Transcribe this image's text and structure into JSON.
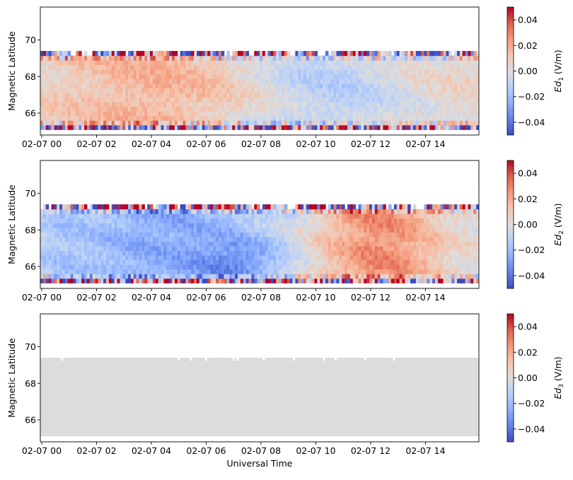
{
  "chart_data": [
    {
      "type": "heatmap",
      "ylabel": "Magnetic Latitude",
      "xlabel": "",
      "ylim": [
        64.8,
        71.8
      ],
      "data_lat_range": [
        65.1,
        69.4
      ],
      "x_ticks": [
        "02-07 00",
        "02-07 02",
        "02-07 04",
        "02-07 06",
        "02-07 08",
        "02-07 10",
        "02-07 12",
        "02-07 14"
      ],
      "x_tick_hours": [
        0,
        2,
        4,
        6,
        8,
        10,
        12,
        14
      ],
      "x_range_hours": [
        -0.05,
        15.95
      ],
      "y_ticks": [
        66,
        68,
        70
      ],
      "colorbar": {
        "label_base": "Ed",
        "label_sub": "1",
        "label_unit": " (V/m)",
        "range": [
          -0.05,
          0.05
        ],
        "ticks": [
          0.04,
          0.02,
          0.0,
          -0.02,
          -0.04
        ],
        "tick_labels": [
          "0.04",
          "0.02",
          "0.00",
          "−0.02",
          "−0.04"
        ],
        "colormap": "coolwarm"
      },
      "pattern": "mostly near zero; slightly positive (light red) 02-07 02 to 02-07 08, slightly negative (light blue) 02-07 08 to 02-07 13; noisy high-amplitude values at top and bottom latitude rows"
    },
    {
      "type": "heatmap",
      "ylabel": "Magnetic Latitude",
      "xlabel": "",
      "ylim": [
        64.8,
        71.8
      ],
      "data_lat_range": [
        65.1,
        69.4
      ],
      "x_ticks": [
        "02-07 00",
        "02-07 02",
        "02-07 04",
        "02-07 06",
        "02-07 08",
        "02-07 10",
        "02-07 12",
        "02-07 14"
      ],
      "x_tick_hours": [
        0,
        2,
        4,
        6,
        8,
        10,
        12,
        14
      ],
      "x_range_hours": [
        -0.05,
        15.95
      ],
      "y_ticks": [
        66,
        68,
        70
      ],
      "colorbar": {
        "label_base": "Ed",
        "label_sub": "2",
        "label_unit": " (V/m)",
        "range": [
          -0.05,
          0.05
        ],
        "ticks": [
          0.04,
          0.02,
          0.0,
          -0.02,
          -0.04
        ],
        "tick_labels": [
          "0.04",
          "0.02",
          "0.00",
          "−0.02",
          "−0.04"
        ],
        "colormap": "coolwarm"
      },
      "pattern": "negative (blue) from 02-07 00 to 02-07 10 strongest near 02-07 07 at 66-67; positive (red) from 02-07 10 to 02-07 14 strongest near 02-07 12; noisy high-amplitude values at top and bottom latitude rows"
    },
    {
      "type": "heatmap",
      "ylabel": "Magnetic Latitude",
      "xlabel": "Universal Time",
      "ylim": [
        64.8,
        71.8
      ],
      "data_lat_range": [
        65.1,
        69.4
      ],
      "x_ticks": [
        "02-07 00",
        "02-07 02",
        "02-07 04",
        "02-07 06",
        "02-07 08",
        "02-07 10",
        "02-07 12",
        "02-07 14"
      ],
      "x_tick_hours": [
        0,
        2,
        4,
        6,
        8,
        10,
        12,
        14
      ],
      "x_range_hours": [
        -0.05,
        15.95
      ],
      "y_ticks": [
        66,
        68,
        70
      ],
      "colorbar": {
        "label_base": "Ed",
        "label_sub": "3",
        "label_unit": " (V/m)",
        "range": [
          -0.05,
          0.05
        ],
        "ticks": [
          0.04,
          0.02,
          0.0,
          -0.02,
          -0.04
        ],
        "tick_labels": [
          "0.04",
          "0.02",
          "0.00",
          "−0.02",
          "−0.04"
        ],
        "colormap": "coolwarm"
      },
      "fill_color": "#dcdcdc",
      "gap_hours": [
        0.75,
        5.0,
        5.45,
        6.0,
        7.0,
        7.15,
        8.1,
        9.2,
        10.3,
        10.72,
        11.8,
        12.85
      ],
      "pattern": "uniform zero (gray, no data variation)"
    }
  ]
}
